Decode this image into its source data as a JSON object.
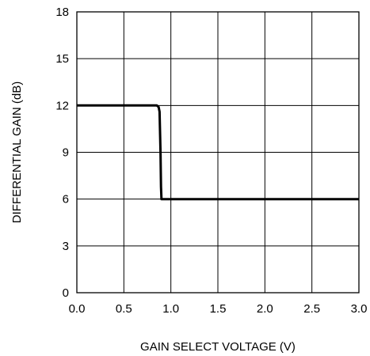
{
  "chart_data": {
    "type": "line",
    "title": "",
    "xlabel": "GAIN SELECT VOLTAGE (V)",
    "ylabel": "DIFFERENTIAL GAIN (dB)",
    "xlim": [
      0,
      3
    ],
    "ylim": [
      0,
      18
    ],
    "x_ticks": [
      0,
      0.5,
      1,
      1.5,
      2,
      2.5,
      3
    ],
    "x_tick_labels": [
      "0.0",
      "0.5",
      "1.0",
      "1.5",
      "2.0",
      "2.5",
      "3.0"
    ],
    "y_ticks": [
      0,
      3,
      6,
      9,
      12,
      15,
      18
    ],
    "y_tick_labels": [
      "0",
      "3",
      "6",
      "9",
      "12",
      "15",
      "18"
    ],
    "grid": true,
    "legend": "none",
    "series": [
      {
        "color": "#000000",
        "x": [
          0.0,
          0.8,
          0.85,
          0.87,
          0.88,
          0.89,
          0.895,
          0.9,
          1.5,
          2.0,
          2.5,
          3.0
        ],
        "y": [
          12,
          12,
          12,
          11.9,
          11.6,
          9.0,
          6.8,
          6,
          6,
          6,
          6,
          6
        ]
      }
    ]
  }
}
